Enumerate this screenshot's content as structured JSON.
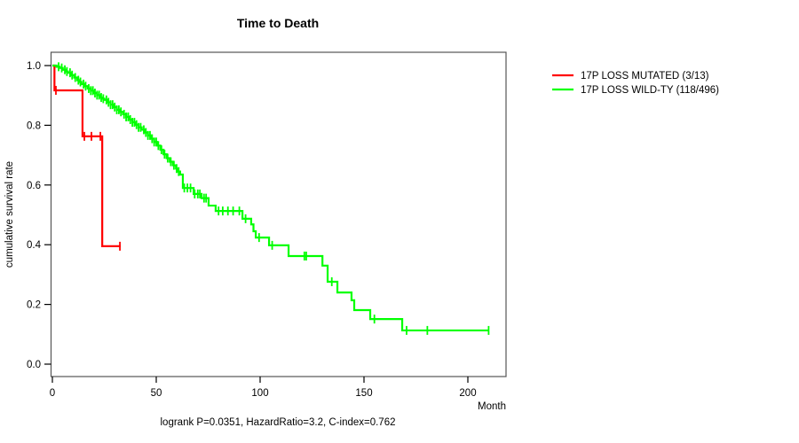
{
  "title": "Time to Death",
  "annotation": "logrank P=0.0351, HazardRatio=3.2, C-index=0.762",
  "legend": {
    "items": [
      {
        "label": "17P LOSS MUTATED (3/13)",
        "color": "#ff0000"
      },
      {
        "label": "17P LOSS WILD-TY (118/496)",
        "color": "#00ff00"
      }
    ]
  },
  "axes": {
    "x": {
      "label": "Month",
      "tick_labels": [
        "0",
        "50",
        "100",
        "150",
        "200"
      ]
    },
    "y": {
      "label": "cumulative survival rate",
      "tick_labels": [
        "1.0",
        "0.8",
        "0.6",
        "0.4",
        "0.2",
        "0.0"
      ]
    }
  },
  "chart_data": {
    "type": "line",
    "subtype": "kaplan-meier-step",
    "title": "Time to Death",
    "xlabel": "Month",
    "ylabel": "cumulative survival rate",
    "xlim": [
      0,
      220
    ],
    "ylim": [
      0.0,
      1.0
    ],
    "x_ticks": [
      0,
      50,
      100,
      150,
      200
    ],
    "y_ticks": [
      1.0,
      0.8,
      0.6,
      0.4,
      0.2,
      0.0
    ],
    "grid": false,
    "legend_position": "right-outside",
    "series": [
      {
        "name": "17P LOSS MUTATED (3/13)",
        "color": "#ff0000",
        "steps": [
          [
            0,
            1.0
          ],
          [
            1,
            0.917
          ],
          [
            14.5,
            0.763
          ],
          [
            24,
            0.395
          ]
        ],
        "end_time": 32.9,
        "censors": [
          1.7,
          15.4,
          18.8,
          23.1,
          32.5
        ]
      },
      {
        "name": "17P LOSS WILD-TY (118/496)",
        "color": "#00ff00",
        "steps": [
          [
            0,
            1.0
          ],
          [
            2,
            0.996
          ],
          [
            3.5,
            0.992
          ],
          [
            5,
            0.986
          ],
          [
            6.5,
            0.98
          ],
          [
            7.5,
            0.976
          ],
          [
            9,
            0.968
          ],
          [
            10.5,
            0.96
          ],
          [
            12,
            0.951
          ],
          [
            13.2,
            0.945
          ],
          [
            14,
            0.938
          ],
          [
            15.5,
            0.931
          ],
          [
            17,
            0.923
          ],
          [
            18.5,
            0.916
          ],
          [
            20,
            0.908
          ],
          [
            21.5,
            0.901
          ],
          [
            23,
            0.893
          ],
          [
            24,
            0.889
          ],
          [
            25,
            0.885
          ],
          [
            26.5,
            0.877
          ],
          [
            28,
            0.869
          ],
          [
            29.5,
            0.861
          ],
          [
            31,
            0.852
          ],
          [
            32.5,
            0.845
          ],
          [
            34,
            0.837
          ],
          [
            35.5,
            0.828
          ],
          [
            37,
            0.819
          ],
          [
            38.5,
            0.81
          ],
          [
            40,
            0.802
          ],
          [
            41.5,
            0.793
          ],
          [
            43,
            0.785
          ],
          [
            44.5,
            0.776
          ],
          [
            46,
            0.766
          ],
          [
            47.5,
            0.755
          ],
          [
            49,
            0.744
          ],
          [
            50.4,
            0.732
          ],
          [
            52,
            0.718
          ],
          [
            53.5,
            0.703
          ],
          [
            55,
            0.69
          ],
          [
            56.5,
            0.678
          ],
          [
            58,
            0.666
          ],
          [
            59.5,
            0.655
          ],
          [
            60.5,
            0.645
          ],
          [
            61.5,
            0.635
          ],
          [
            62.8,
            0.59
          ],
          [
            68,
            0.57
          ],
          [
            71.8,
            0.556
          ],
          [
            75.2,
            0.531
          ],
          [
            78.6,
            0.513
          ],
          [
            91.5,
            0.487
          ],
          [
            95.7,
            0.468
          ],
          [
            96.8,
            0.445
          ],
          [
            97.9,
            0.424
          ],
          [
            104.3,
            0.398
          ],
          [
            113.7,
            0.362
          ],
          [
            130,
            0.33
          ],
          [
            132.5,
            0.276
          ],
          [
            137.2,
            0.24
          ],
          [
            144,
            0.214
          ],
          [
            145.3,
            0.181
          ],
          [
            153,
            0.151
          ],
          [
            168.4,
            0.113
          ]
        ],
        "end_time": 210,
        "censors": [
          3,
          4.5,
          6,
          7,
          8.5,
          9.5,
          11,
          12.5,
          13.5,
          15,
          16,
          17.5,
          18.5,
          19.5,
          20.5,
          21.5,
          22.5,
          23.5,
          24.5,
          26,
          27,
          28,
          29,
          30,
          31,
          32,
          33,
          34.5,
          35.5,
          36.5,
          37.5,
          38.5,
          39.5,
          40.5,
          41.5,
          42.5,
          44,
          45,
          46,
          47,
          48,
          49,
          50,
          51,
          52.5,
          54,
          55.5,
          57,
          58.5,
          59.8,
          60.8,
          63.5,
          65,
          66.5,
          68.5,
          70,
          71,
          73,
          74,
          80,
          82,
          84.5,
          87,
          90,
          93,
          99.5,
          105.8,
          121.3,
          122.2,
          134.5,
          155,
          170.5,
          180.5,
          210
        ]
      }
    ]
  }
}
